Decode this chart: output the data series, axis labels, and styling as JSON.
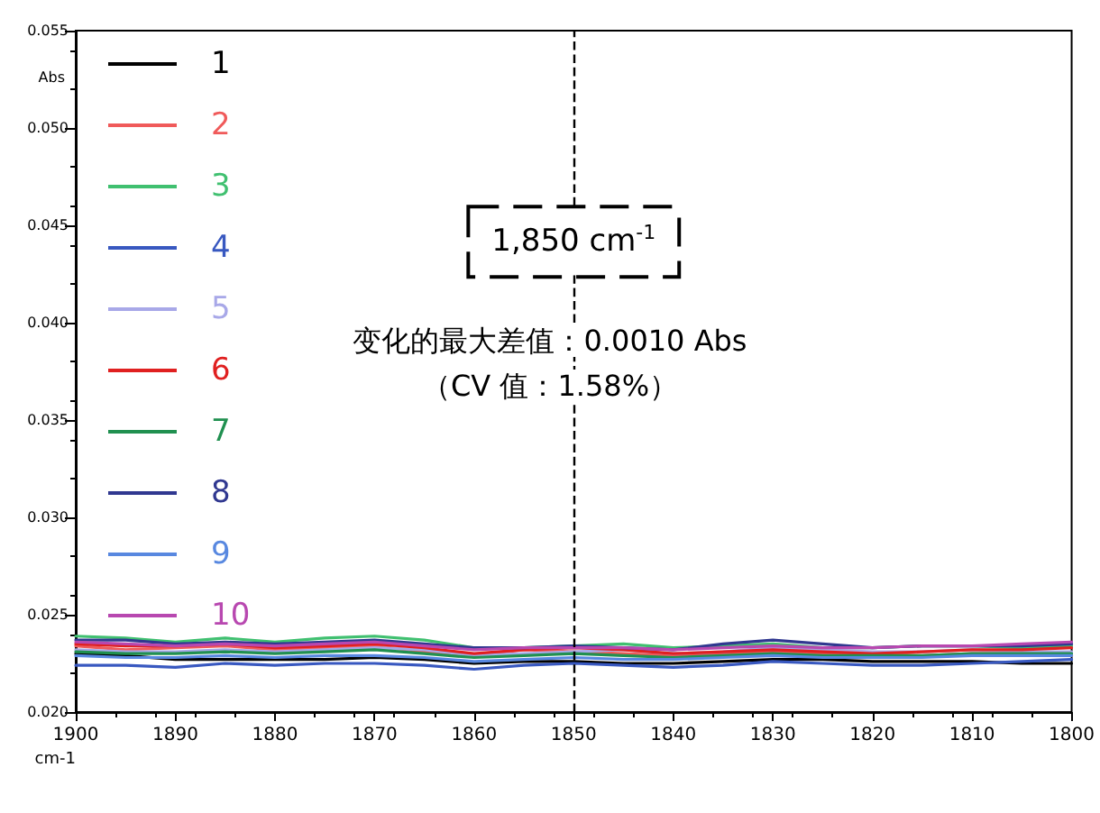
{
  "chart_data": {
    "type": "line",
    "xlabel": "cm-1",
    "ylabel": "Abs",
    "x": [
      1900,
      1895,
      1890,
      1885,
      1880,
      1875,
      1870,
      1865,
      1860,
      1855,
      1850,
      1845,
      1840,
      1835,
      1830,
      1825,
      1820,
      1815,
      1810,
      1805,
      1800
    ],
    "series": [
      {
        "name": "1",
        "color": "#000000",
        "values": [
          0.023,
          0.0229,
          0.0227,
          0.0227,
          0.0227,
          0.0227,
          0.0228,
          0.0227,
          0.0225,
          0.0226,
          0.0226,
          0.0225,
          0.0225,
          0.0226,
          0.0227,
          0.0227,
          0.0226,
          0.0226,
          0.0226,
          0.0225,
          0.0225
        ]
      },
      {
        "name": "2",
        "color": "#f05a5a",
        "values": [
          0.0234,
          0.0232,
          0.0233,
          0.0234,
          0.0232,
          0.0233,
          0.0234,
          0.0231,
          0.0229,
          0.0232,
          0.0231,
          0.023,
          0.0229,
          0.023,
          0.0231,
          0.023,
          0.023,
          0.0229,
          0.023,
          0.023,
          0.0229
        ]
      },
      {
        "name": "3",
        "color": "#40c070",
        "values": [
          0.0239,
          0.0238,
          0.0236,
          0.0238,
          0.0236,
          0.0238,
          0.0239,
          0.0237,
          0.0233,
          0.0233,
          0.0234,
          0.0235,
          0.0233,
          0.0234,
          0.0235,
          0.0233,
          0.0233,
          0.0234,
          0.0234,
          0.0233,
          0.0234
        ]
      },
      {
        "name": "4",
        "color": "#3858c0",
        "values": [
          0.0224,
          0.0224,
          0.0223,
          0.0225,
          0.0224,
          0.0225,
          0.0225,
          0.0224,
          0.0222,
          0.0224,
          0.0225,
          0.0224,
          0.0223,
          0.0224,
          0.0226,
          0.0225,
          0.0224,
          0.0224,
          0.0225,
          0.0226,
          0.0227
        ]
      },
      {
        "name": "5",
        "color": "#a8a8e8",
        "values": [
          0.0232,
          0.0231,
          0.0231,
          0.0232,
          0.0231,
          0.0232,
          0.0233,
          0.0232,
          0.0229,
          0.023,
          0.0231,
          0.0232,
          0.023,
          0.0231,
          0.0233,
          0.0232,
          0.0231,
          0.0231,
          0.0232,
          0.0231,
          0.0231
        ]
      },
      {
        "name": "6",
        "color": "#e02020",
        "values": [
          0.0235,
          0.0234,
          0.0234,
          0.0235,
          0.0233,
          0.0234,
          0.0235,
          0.0233,
          0.023,
          0.0232,
          0.0233,
          0.0232,
          0.023,
          0.0231,
          0.0232,
          0.0231,
          0.023,
          0.0231,
          0.0232,
          0.0232,
          0.0233
        ]
      },
      {
        "name": "7",
        "color": "#209050",
        "values": [
          0.0231,
          0.023,
          0.023,
          0.0231,
          0.023,
          0.0231,
          0.0232,
          0.023,
          0.0228,
          0.0229,
          0.023,
          0.0229,
          0.0228,
          0.0229,
          0.023,
          0.0229,
          0.0229,
          0.0229,
          0.023,
          0.023,
          0.023
        ]
      },
      {
        "name": "8",
        "color": "#303890",
        "values": [
          0.0237,
          0.0237,
          0.0235,
          0.0236,
          0.0235,
          0.0236,
          0.0237,
          0.0235,
          0.0233,
          0.0233,
          0.0234,
          0.0233,
          0.0232,
          0.0235,
          0.0237,
          0.0235,
          0.0233,
          0.0234,
          0.0234,
          0.0234,
          0.0235
        ]
      },
      {
        "name": "9",
        "color": "#5888e0",
        "values": [
          0.0229,
          0.0228,
          0.0228,
          0.0229,
          0.0228,
          0.0229,
          0.0229,
          0.0228,
          0.0226,
          0.0227,
          0.0228,
          0.0227,
          0.0227,
          0.0228,
          0.0229,
          0.0228,
          0.0228,
          0.0228,
          0.0229,
          0.0229,
          0.0229
        ]
      },
      {
        "name": "10",
        "color": "#b848b0",
        "values": [
          0.0236,
          0.0235,
          0.0234,
          0.0235,
          0.0234,
          0.0235,
          0.0236,
          0.0234,
          0.0232,
          0.0233,
          0.0233,
          0.0233,
          0.0232,
          0.0233,
          0.0234,
          0.0233,
          0.0233,
          0.0234,
          0.0234,
          0.0235,
          0.0236
        ]
      }
    ],
    "xlim": [
      1900,
      1800
    ],
    "xticks": [
      1900,
      1890,
      1880,
      1870,
      1860,
      1850,
      1840,
      1830,
      1820,
      1810,
      1800
    ],
    "ylim": [
      0.02,
      0.055
    ],
    "yticks": [
      {
        "value": 0.02,
        "label": "0.020"
      },
      {
        "value": 0.025,
        "label": "0.025"
      },
      {
        "value": 0.03,
        "label": "0.030"
      },
      {
        "value": 0.035,
        "label": "0.035"
      },
      {
        "value": 0.04,
        "label": "0.040"
      },
      {
        "value": 0.045,
        "label": "0.045"
      },
      {
        "value": 0.05,
        "label": "0.050"
      },
      {
        "value": 0.055,
        "label": "0.055"
      }
    ],
    "ref_lines": [
      {
        "axis": "x",
        "value": 1850,
        "label": "1,850 cm$^{-1}$",
        "line_style": "dashed",
        "color": "#000000"
      }
    ],
    "annotations": [
      "变化的最大差值：0.0010 Abs",
      "（CV 值：1.58%）"
    ],
    "legend": "top left",
    "grid": false,
    "marker": "none",
    "line_style": "solid"
  }
}
